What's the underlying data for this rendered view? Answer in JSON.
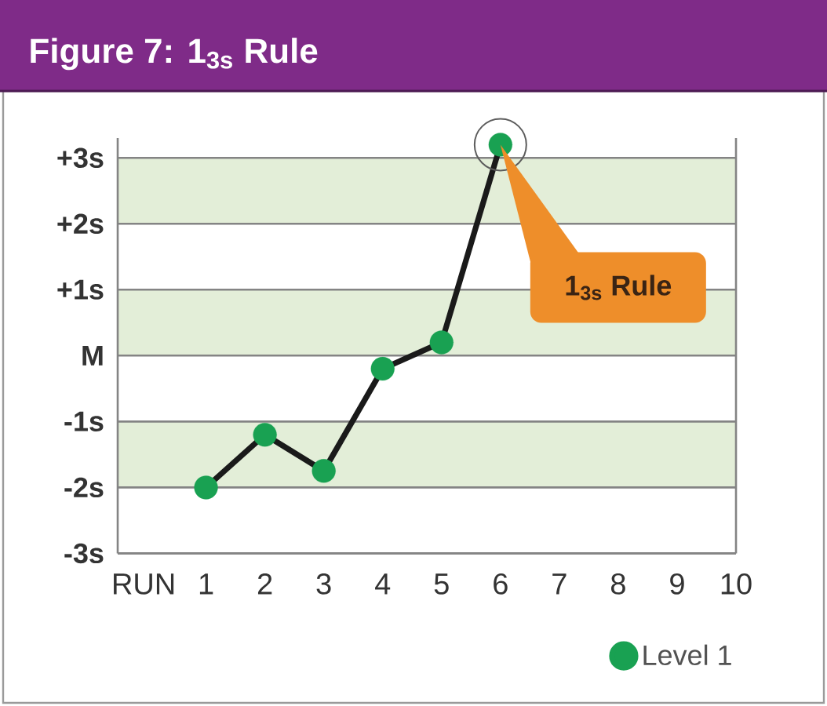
{
  "chart_data": {
    "type": "line",
    "title": "Figure 7: 1$_{3s}$ Rule",
    "xlabel": "RUN",
    "categories": [
      "1",
      "2",
      "3",
      "4",
      "5",
      "6",
      "7",
      "8",
      "9",
      "10"
    ],
    "series": [
      {
        "name": "Level 1",
        "color": "#19A152",
        "values": [
          -2,
          -1.2,
          -1.75,
          -0.2,
          0.2,
          3.2,
          null,
          null,
          null,
          null
        ]
      }
    ],
    "ylim": [
      -3,
      3.3
    ],
    "yticks": [
      {
        "value": -3,
        "label": "-3s"
      },
      {
        "value": -2,
        "label": "-2s"
      },
      {
        "value": -1,
        "label": "-1s"
      },
      {
        "value": 0,
        "label": "M"
      },
      {
        "value": 1,
        "label": "+1s"
      },
      {
        "value": 2,
        "label": "+2s"
      },
      {
        "value": 3,
        "label": "+3s"
      }
    ],
    "bands": [
      {
        "axis": "y",
        "from": 2,
        "to": 3,
        "color": "#E3EED8"
      },
      {
        "axis": "y",
        "from": 0,
        "to": 1,
        "color": "#E3EED8"
      },
      {
        "axis": "y",
        "from": -2,
        "to": -1,
        "color": "#E3EED8"
      }
    ],
    "annotations": [
      "1$_{3s}$ Rule"
    ],
    "grid": "y",
    "legend": "bottom right",
    "marker": "circle",
    "line_style": "solid"
  }
}
